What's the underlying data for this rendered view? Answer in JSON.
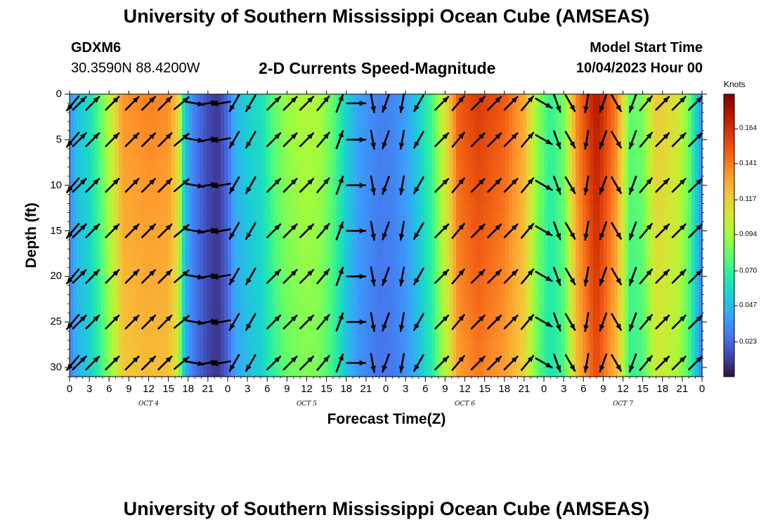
{
  "header": {
    "title_top": "University of Southern Mississippi Ocean Cube (AMSEAS)",
    "title_bottom": "University of Southern Mississippi Ocean Cube (AMSEAS)",
    "station_id": "GDXM6",
    "station_coords": "30.3590N  88.4200W",
    "plot_title": "2-D Currents Speed-Magnitude",
    "model_start_label": "Model Start Time",
    "model_start_value": "10/04/2023 Hour 00"
  },
  "chart_data": {
    "type": "heatmap",
    "title": "2-D Currents Speed-Magnitude",
    "xlabel": "Forecast Time(Z)",
    "ylabel": "Depth (ft)",
    "x_range_hours": [
      0,
      96
    ],
    "y_range_ft": [
      0,
      31
    ],
    "x_ticks": [
      "0",
      "3",
      "6",
      "9",
      "12",
      "15",
      "18",
      "21",
      "0",
      "3",
      "6",
      "9",
      "12",
      "15",
      "18",
      "21",
      "0",
      "3",
      "6",
      "9",
      "12",
      "15",
      "18",
      "21",
      "0",
      "3",
      "6",
      "9",
      "12",
      "15",
      "18",
      "21",
      "0"
    ],
    "y_ticks": [
      "0",
      "5",
      "10",
      "15",
      "20",
      "25",
      "30"
    ],
    "date_labels": [
      {
        "label": "OCT 4",
        "hour": 12
      },
      {
        "label": "OCT 5",
        "hour": 36
      },
      {
        "label": "OCT 6",
        "hour": 60
      },
      {
        "label": "OCT 7",
        "hour": 84
      }
    ],
    "colorbar": {
      "label": "Knots",
      "ticks": [
        "0.023",
        "0.047",
        "0.070",
        "0.094",
        "0.117",
        "0.141",
        "0.164"
      ],
      "min": 0.0,
      "max": 0.187,
      "colors": [
        "#30123b",
        "#4145ab",
        "#4675ed",
        "#39a2fc",
        "#1bcfd4",
        "#24eca6",
        "#61fc6c",
        "#a4fc3b",
        "#d1e834",
        "#f3c63a",
        "#fe9b2d",
        "#f36315",
        "#d93806",
        "#b11901",
        "#7a0402"
      ]
    },
    "speed_columns": [
      {
        "t": 0,
        "speed": 0.035
      },
      {
        "t": 1,
        "speed": 0.05
      },
      {
        "t": 3,
        "speed": 0.06
      },
      {
        "t": 5,
        "speed": 0.085
      },
      {
        "t": 7,
        "speed": 0.115
      },
      {
        "t": 8,
        "speed": 0.135
      },
      {
        "t": 12,
        "speed": 0.14
      },
      {
        "t": 15,
        "speed": 0.138
      },
      {
        "t": 16.5,
        "speed": 0.115
      },
      {
        "t": 17.5,
        "speed": 0.05
      },
      {
        "t": 19,
        "speed": 0.03
      },
      {
        "t": 21,
        "speed": 0.015
      },
      {
        "t": 22.5,
        "speed": 0.01
      },
      {
        "t": 24,
        "speed": 0.025
      },
      {
        "t": 25,
        "speed": 0.045
      },
      {
        "t": 27,
        "speed": 0.055
      },
      {
        "t": 29,
        "speed": 0.06
      },
      {
        "t": 31,
        "speed": 0.08
      },
      {
        "t": 33,
        "speed": 0.092
      },
      {
        "t": 36,
        "speed": 0.098
      },
      {
        "t": 38,
        "speed": 0.095
      },
      {
        "t": 40,
        "speed": 0.08
      },
      {
        "t": 42,
        "speed": 0.055
      },
      {
        "t": 44,
        "speed": 0.04
      },
      {
        "t": 47,
        "speed": 0.03
      },
      {
        "t": 49,
        "speed": 0.032
      },
      {
        "t": 51,
        "speed": 0.04
      },
      {
        "t": 53,
        "speed": 0.055
      },
      {
        "t": 55,
        "speed": 0.075
      },
      {
        "t": 57,
        "speed": 0.11
      },
      {
        "t": 59,
        "speed": 0.15
      },
      {
        "t": 62,
        "speed": 0.16
      },
      {
        "t": 66,
        "speed": 0.15
      },
      {
        "t": 69,
        "speed": 0.13
      },
      {
        "t": 71,
        "speed": 0.09
      },
      {
        "t": 73,
        "speed": 0.07
      },
      {
        "t": 75,
        "speed": 0.085
      },
      {
        "t": 77,
        "speed": 0.14
      },
      {
        "t": 80,
        "speed": 0.175
      },
      {
        "t": 83,
        "speed": 0.14
      },
      {
        "t": 85,
        "speed": 0.08
      },
      {
        "t": 87,
        "speed": 0.085
      },
      {
        "t": 89,
        "speed": 0.12
      },
      {
        "t": 92,
        "speed": 0.11
      },
      {
        "t": 94,
        "speed": 0.085
      },
      {
        "t": 95.5,
        "speed": 0.045
      },
      {
        "t": 96,
        "speed": 0.035
      }
    ],
    "vector_rows_ft": [
      1,
      5,
      10,
      15,
      20,
      25,
      29.5
    ],
    "vector_direction_columns": [
      {
        "t": 0.5,
        "dir_deg": 220
      },
      {
        "t": 1.5,
        "dir_deg": 45
      },
      {
        "t": 3.5,
        "dir_deg": 45
      },
      {
        "t": 6.5,
        "dir_deg": 45
      },
      {
        "t": 9.5,
        "dir_deg": 45
      },
      {
        "t": 12,
        "dir_deg": 45
      },
      {
        "t": 14.5,
        "dir_deg": 45
      },
      {
        "t": 17,
        "dir_deg": 50
      },
      {
        "t": 19,
        "dir_deg": 100
      },
      {
        "t": 21,
        "dir_deg": 80
      },
      {
        "t": 23,
        "dir_deg": 260
      },
      {
        "t": 25,
        "dir_deg": 210
      },
      {
        "t": 27.5,
        "dir_deg": 210
      },
      {
        "t": 31,
        "dir_deg": 45
      },
      {
        "t": 33.5,
        "dir_deg": 45
      },
      {
        "t": 36,
        "dir_deg": 45
      },
      {
        "t": 38.5,
        "dir_deg": 40
      },
      {
        "t": 41,
        "dir_deg": 20
      },
      {
        "t": 43.5,
        "dir_deg": 90
      },
      {
        "t": 46,
        "dir_deg": 170
      },
      {
        "t": 48,
        "dir_deg": 200
      },
      {
        "t": 50.5,
        "dir_deg": 190
      },
      {
        "t": 53,
        "dir_deg": 210
      },
      {
        "t": 56.5,
        "dir_deg": 45
      },
      {
        "t": 59,
        "dir_deg": 40
      },
      {
        "t": 62,
        "dir_deg": 45
      },
      {
        "t": 64.5,
        "dir_deg": 45
      },
      {
        "t": 67,
        "dir_deg": 45
      },
      {
        "t": 69.5,
        "dir_deg": 40
      },
      {
        "t": 72,
        "dir_deg": 120
      },
      {
        "t": 74,
        "dir_deg": 160
      },
      {
        "t": 76,
        "dir_deg": 150
      },
      {
        "t": 78.5,
        "dir_deg": 190
      },
      {
        "t": 81,
        "dir_deg": 200
      },
      {
        "t": 83,
        "dir_deg": 150
      },
      {
        "t": 85.5,
        "dir_deg": 200
      },
      {
        "t": 87.5,
        "dir_deg": 40
      },
      {
        "t": 90,
        "dir_deg": 45
      },
      {
        "t": 92.5,
        "dir_deg": 45
      },
      {
        "t": 95,
        "dir_deg": 45
      }
    ]
  }
}
